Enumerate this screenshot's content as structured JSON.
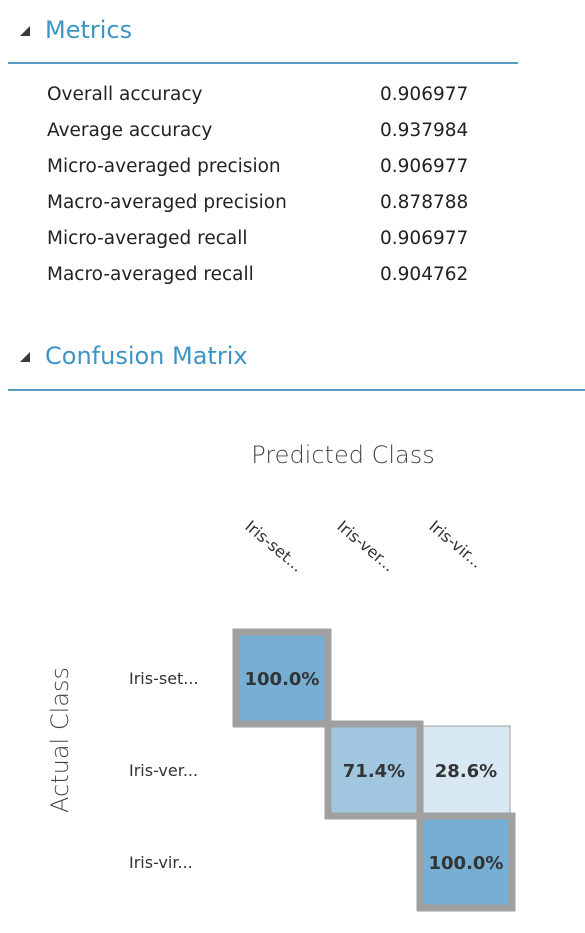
{
  "metrics_section": {
    "title": "Metrics",
    "rows": [
      {
        "label": "Overall accuracy",
        "value": "0.906977"
      },
      {
        "label": "Average accuracy",
        "value": "0.937984"
      },
      {
        "label": "Micro-averaged precision",
        "value": "0.906977"
      },
      {
        "label": "Macro-averaged precision",
        "value": "0.878788"
      },
      {
        "label": "Micro-averaged recall",
        "value": "0.906977"
      },
      {
        "label": "Macro-averaged recall",
        "value": "0.904762"
      }
    ]
  },
  "confusion_section": {
    "title": "Confusion Matrix"
  },
  "chart_data": {
    "type": "heatmap",
    "title": "",
    "xlabel": "Predicted Class",
    "ylabel": "Actual Class",
    "x_categories": [
      "Iris-set...",
      "Iris-ver...",
      "Iris-vir..."
    ],
    "y_categories": [
      "Iris-set...",
      "Iris-ver...",
      "Iris-vir..."
    ],
    "values": [
      [
        100.0,
        null,
        null
      ],
      [
        null,
        71.4,
        28.6
      ],
      [
        null,
        null,
        100.0
      ]
    ],
    "cell_labels": [
      [
        "100.0%",
        "",
        ""
      ],
      [
        "",
        "71.4%",
        "28.6%"
      ],
      [
        "",
        "",
        "100.0%"
      ]
    ],
    "colors": {
      "high": "#77aed4",
      "mid": "#a0c6e0",
      "low": "#d8e8f3",
      "diagonal_border": "#a0a0a0",
      "cell_border": "#b8b8b8"
    }
  }
}
